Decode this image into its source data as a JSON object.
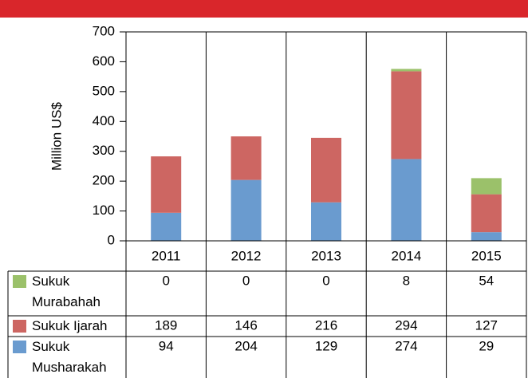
{
  "chart_data": {
    "type": "bar",
    "stacked": true,
    "y_label": "Million US$",
    "categories": [
      "2011",
      "2012",
      "2013",
      "2014",
      "2015"
    ],
    "series": [
      {
        "name": "Sukuk Murabahah",
        "color": "#9bc16a",
        "values": [
          0,
          0,
          0,
          8,
          54
        ]
      },
      {
        "name": "Sukuk Ijarah",
        "color": "#cd6662",
        "values": [
          189,
          146,
          216,
          294,
          127
        ]
      },
      {
        "name": "Sukuk Musharakah",
        "color": "#6a9bcf",
        "values": [
          94,
          204,
          129,
          274,
          29
        ]
      }
    ],
    "ylim": [
      0,
      700
    ],
    "yticks": [
      0,
      100,
      200,
      300,
      400,
      500,
      600,
      700
    ],
    "grid": false
  }
}
